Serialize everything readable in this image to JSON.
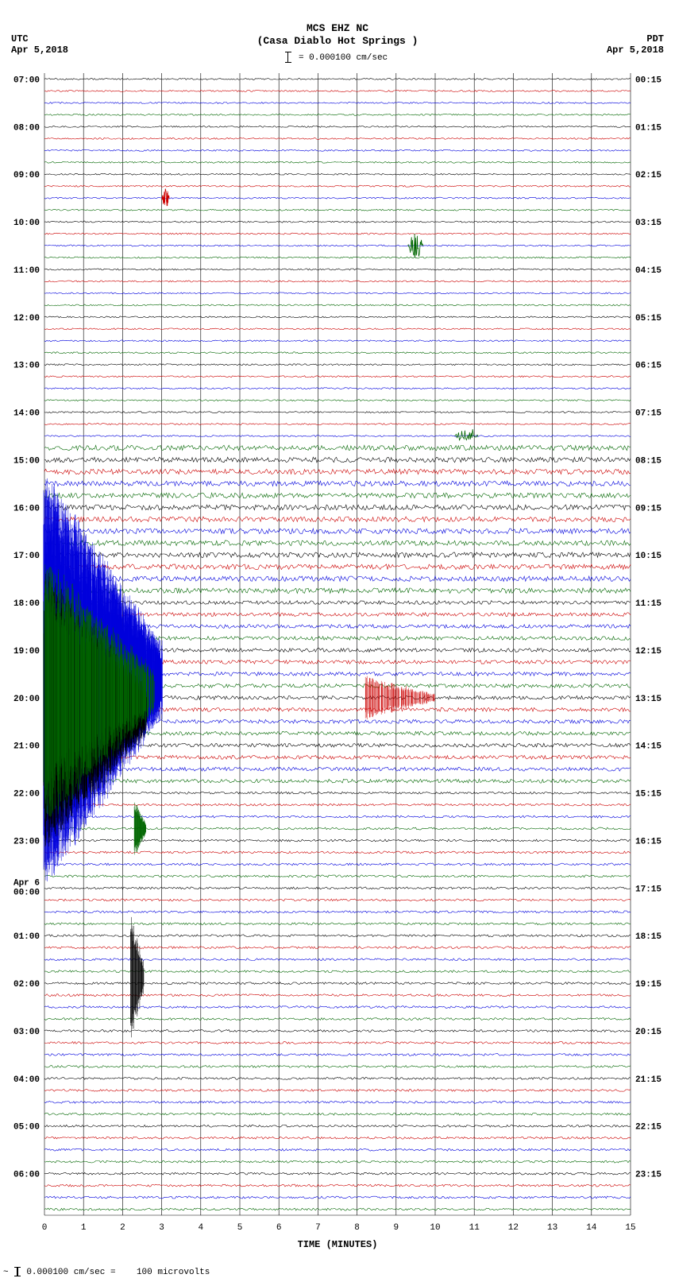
{
  "header": {
    "station_line": "MCS EHZ NC",
    "location_line": "(Casa Diablo Hot Springs )",
    "tz_left_label": "UTC",
    "tz_left_date": "Apr 5,2018",
    "tz_right_label": "PDT",
    "tz_right_date": "Apr 5,2018",
    "scale_text": "= 0.000100 cm/sec"
  },
  "footer": {
    "text_left": "=",
    "text_value": "0.000100 cm/sec =",
    "text_right": "100 microvolts"
  },
  "xaxis": {
    "label": "TIME (MINUTES)",
    "min": 0,
    "max": 15,
    "ticks": [
      0,
      1,
      2,
      3,
      4,
      5,
      6,
      7,
      8,
      9,
      10,
      11,
      12,
      13,
      14,
      15
    ]
  },
  "plot": {
    "type": "seismogram-helicorder",
    "background_color": "#ffffff",
    "grid_color": "#000000",
    "trace_colors_cycle": [
      "#000000",
      "#cc0000",
      "#0000dd",
      "#006600"
    ],
    "hour_labels_left": [
      {
        "t": "07:00",
        "bold": true
      },
      {
        "t": "08:00",
        "bold": true
      },
      {
        "t": "09:00",
        "bold": true
      },
      {
        "t": "10:00",
        "bold": true
      },
      {
        "t": "11:00",
        "bold": true
      },
      {
        "t": "12:00",
        "bold": true
      },
      {
        "t": "13:00",
        "bold": true
      },
      {
        "t": "14:00",
        "bold": true
      },
      {
        "t": "15:00",
        "bold": true
      },
      {
        "t": "16:00",
        "bold": true
      },
      {
        "t": "17:00",
        "bold": true
      },
      {
        "t": "18:00",
        "bold": true
      },
      {
        "t": "19:00",
        "bold": true
      },
      {
        "t": "20:00",
        "bold": true
      },
      {
        "t": "21:00",
        "bold": true
      },
      {
        "t": "22:00",
        "bold": true
      },
      {
        "t": "23:00",
        "bold": true
      },
      {
        "t": "Apr 6",
        "bold": true,
        "extra": "00:00"
      },
      {
        "t": "01:00",
        "bold": true
      },
      {
        "t": "02:00",
        "bold": true
      },
      {
        "t": "03:00",
        "bold": true
      },
      {
        "t": "04:00",
        "bold": true
      },
      {
        "t": "05:00",
        "bold": true
      },
      {
        "t": "06:00",
        "bold": true
      }
    ],
    "hour_labels_right": [
      "00:15",
      "01:15",
      "02:15",
      "03:15",
      "04:15",
      "05:15",
      "06:15",
      "07:15",
      "08:15",
      "09:15",
      "10:15",
      "11:15",
      "12:15",
      "13:15",
      "14:15",
      "15:15",
      "16:15",
      "17:15",
      "18:15",
      "19:15",
      "20:15",
      "21:15",
      "22:15",
      "23:15"
    ],
    "n_traces": 96,
    "noise_profile": [
      {
        "from": 0,
        "to": 31,
        "amp": 0.9
      },
      {
        "from": 31,
        "to": 44,
        "amp": 3.0
      },
      {
        "from": 44,
        "to": 60,
        "amp": 2.2
      },
      {
        "from": 60,
        "to": 96,
        "amp": 1.3
      }
    ],
    "events": [
      {
        "trace_from": 44,
        "trace_to": 58,
        "x_from": 0.0,
        "x_to": 3.0,
        "amp": 28,
        "color": "#0000dd",
        "density": 1600
      },
      {
        "trace_from": 50,
        "trace_to": 57,
        "x_from": 0.0,
        "x_to": 2.6,
        "amp": 24,
        "color": "#000000",
        "density": 900
      },
      {
        "trace_from": 48,
        "trace_to": 56,
        "x_from": 0.0,
        "x_to": 2.8,
        "amp": 20,
        "color": "#006600",
        "density": 500
      },
      {
        "trace_from": 52,
        "trace_to": 53,
        "x_from": 8.2,
        "x_to": 10.0,
        "amp": 4,
        "color": "#cc0000",
        "density": 120
      },
      {
        "trace_from": 63,
        "trace_to": 64,
        "x_from": 2.3,
        "x_to": 2.6,
        "amp": 6,
        "color": "#006600",
        "density": 60
      },
      {
        "trace_from": 75,
        "trace_to": 77,
        "x_from": 2.2,
        "x_to": 2.55,
        "amp": 14,
        "color": "#000000",
        "density": 40
      }
    ],
    "blips": [
      {
        "trace": 10,
        "x": 3.0,
        "amp": 3,
        "w": 0.2,
        "color": "#cc0000"
      },
      {
        "trace": 14,
        "x": 9.3,
        "amp": 4,
        "w": 0.4,
        "color": "#006600"
      },
      {
        "trace": 30,
        "x": 10.5,
        "amp": 3,
        "w": 0.6,
        "color": "#006600"
      }
    ]
  }
}
